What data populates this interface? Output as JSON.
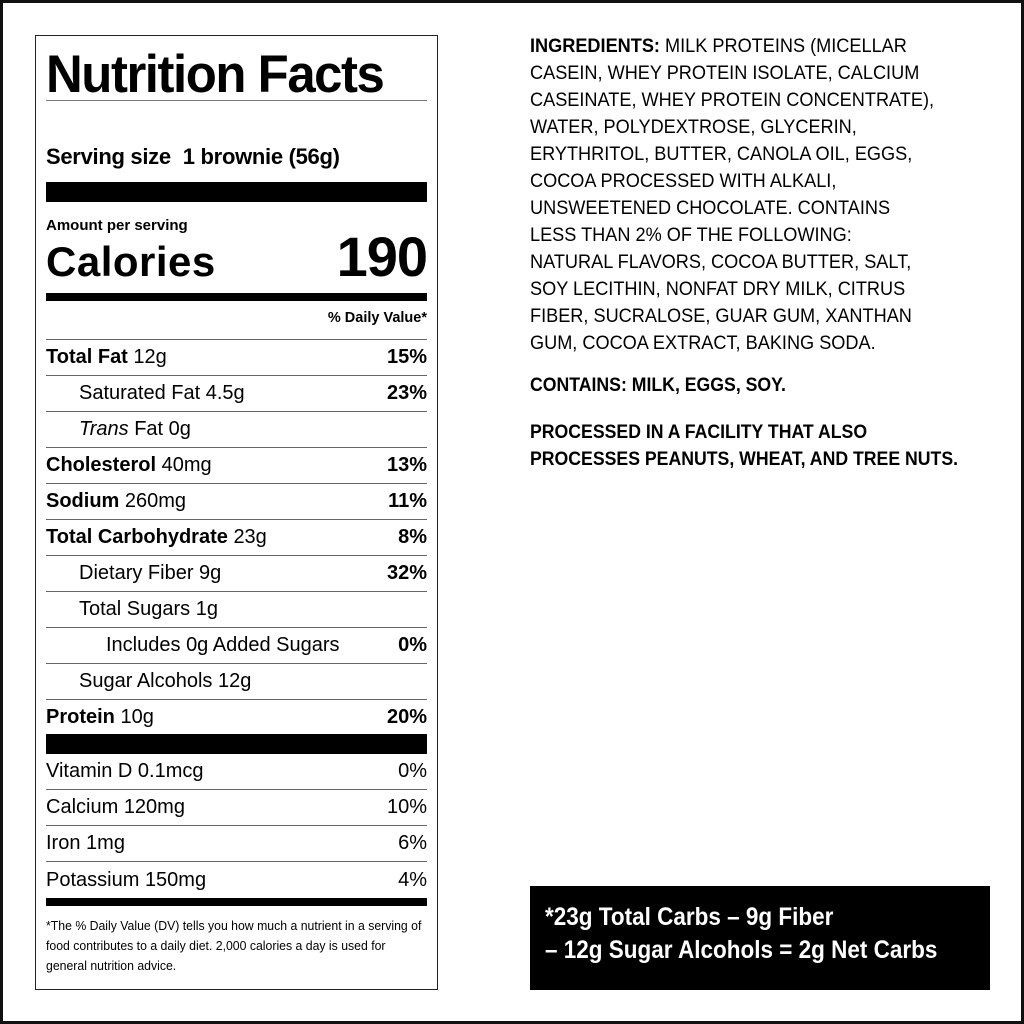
{
  "label": {
    "title": "Nutrition Facts",
    "serving_size_label": "Serving size",
    "serving_size_value": "1 brownie (56g)",
    "amount_per_serving": "Amount per serving",
    "calories_label": "Calories",
    "calories_value": "190",
    "daily_value_header": "% Daily Value*",
    "nutrients": [
      {
        "name": "Total Fat",
        "amount": "12g",
        "dv": "15%"
      },
      {
        "name": "Saturated Fat",
        "amount": "4.5g",
        "dv": "23%"
      },
      {
        "name": "Trans",
        "name2": "Fat",
        "amount": "0g",
        "dv": ""
      },
      {
        "name": "Cholesterol",
        "amount": "40mg",
        "dv": "13%"
      },
      {
        "name": "Sodium",
        "amount": "260mg",
        "dv": "11%"
      },
      {
        "name": "Total Carbohydrate",
        "amount": "23g",
        "dv": "8%"
      },
      {
        "name": "Dietary Fiber",
        "amount": "9g",
        "dv": "32%"
      },
      {
        "name": "Total Sugars",
        "amount": "1g",
        "dv": ""
      },
      {
        "name": "Includes",
        "amount": "0g",
        "name2": "Added Sugars",
        "dv": "0%"
      },
      {
        "name": "Sugar Alcohols",
        "amount": "12g",
        "dv": ""
      },
      {
        "name": "Protein",
        "amount": "10g",
        "dv": "20%"
      }
    ],
    "vitamins": [
      {
        "name": "Vitamin D",
        "amount": "0.1mcg",
        "dv": "0%"
      },
      {
        "name": "Calcium",
        "amount": "120mg",
        "dv": "10%"
      },
      {
        "name": "Iron",
        "amount": "1mg",
        "dv": "6%"
      },
      {
        "name": "Potassium",
        "amount": "150mg",
        "dv": "4%"
      }
    ],
    "footnote": "*The % Daily Value (DV) tells you how much a nutrient in a serving of food contributes to a daily diet. 2,000 calories a day is used for general nutrition advice."
  },
  "ingredients": {
    "heading": "INGREDIENTS:",
    "lines": [
      " MILK PROTEINS (MICELLAR",
      "CASEIN, WHEY PROTEIN ISOLATE, CALCIUM",
      "CASEINATE, WHEY PROTEIN CONCENTRATE),",
      "WATER, POLYDEXTROSE, GLYCERIN,",
      "ERYTHRITOL, BUTTER, CANOLA OIL, EGGS,",
      "COCOA PROCESSED WITH ALKALI,",
      "UNSWEETENED CHOCOLATE. CONTAINS",
      "LESS THAN 2% OF THE FOLLOWING:",
      "NATURAL FLAVORS, COCOA BUTTER, SALT,",
      "SOY LECITHIN, NONFAT DRY MILK, CITRUS",
      "FIBER, SUCRALOSE, GUAR GUM, XANTHAN",
      "GUM, COCOA EXTRACT, BAKING SODA."
    ]
  },
  "allergens": "CONTAINS: MILK, EGGS, SOY.",
  "facility": [
    "PROCESSED IN A FACILITY THAT ALSO",
    "PROCESSES PEANUTS, WHEAT, AND TREE NUTS."
  ],
  "net_carbs": [
    "*23g Total Carbs – 9g Fiber",
    "– 12g Sugar Alcohols = 2g Net Carbs"
  ]
}
